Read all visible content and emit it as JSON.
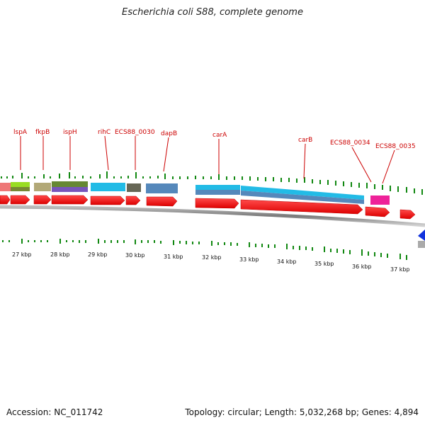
{
  "title": "Escherichia coli S88, complete genome",
  "footer": {
    "accession": "Accession: NC_011742",
    "summary": "Topology: circular; Length: 5,032,268 bp; Genes: 4,894"
  },
  "colors": {
    "cds": "#ee1111",
    "label": "#cc0000",
    "gc": "#118811",
    "backbone": "#888888",
    "blue_marker": "#1133dd"
  },
  "gene_labels": [
    "lspA",
    "fkpB",
    "ispH",
    "rihC",
    "ECS88_0030",
    "dapB",
    "carA",
    "carB",
    "ECS88_0034",
    "ECS88_0035"
  ],
  "scale_labels": [
    "27 kbp",
    "28 kbp",
    "29 kbp",
    "30 kbp",
    "31 kbp",
    "32 kbp",
    "33 kbp",
    "34 kbp",
    "35 kbp",
    "36 kbp",
    "37 kbp"
  ]
}
